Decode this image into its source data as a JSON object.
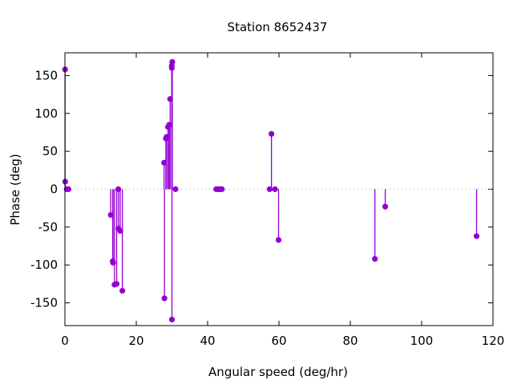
{
  "chart_data": {
    "type": "scatter",
    "style": "impulses-with-points",
    "title": "Station 8652437",
    "xlabel": "Angular speed (deg/hr)",
    "ylabel": "Phase (deg)",
    "xlim": [
      0,
      120
    ],
    "ylim": [
      -180,
      180
    ],
    "xticks": [
      0,
      20,
      40,
      60,
      80,
      100,
      120
    ],
    "yticks": [
      -150,
      -100,
      -50,
      0,
      50,
      100,
      150
    ],
    "zero_line": true,
    "color": "#9400d3",
    "points": [
      {
        "x": 0.04,
        "y": 158
      },
      {
        "x": 0.08,
        "y": 10
      },
      {
        "x": 0.5,
        "y": 0
      },
      {
        "x": 1.0,
        "y": 0
      },
      {
        "x": 12.85,
        "y": -34
      },
      {
        "x": 13.4,
        "y": -95
      },
      {
        "x": 13.5,
        "y": -97
      },
      {
        "x": 13.9,
        "y": -126
      },
      {
        "x": 14.5,
        "y": -125
      },
      {
        "x": 14.96,
        "y": 0
      },
      {
        "x": 15.0,
        "y": -52
      },
      {
        "x": 15.5,
        "y": -55
      },
      {
        "x": 16.1,
        "y": -134
      },
      {
        "x": 27.8,
        "y": 35
      },
      {
        "x": 27.9,
        "y": -144
      },
      {
        "x": 28.3,
        "y": 67
      },
      {
        "x": 28.5,
        "y": 69
      },
      {
        "x": 28.9,
        "y": 82
      },
      {
        "x": 29.2,
        "y": 85
      },
      {
        "x": 29.5,
        "y": 119
      },
      {
        "x": 29.96,
        "y": 160
      },
      {
        "x": 29.96,
        "y": 163
      },
      {
        "x": 30.0,
        "y": -172
      },
      {
        "x": 30.1,
        "y": 168
      },
      {
        "x": 31.0,
        "y": 0
      },
      {
        "x": 42.4,
        "y": 0
      },
      {
        "x": 43.0,
        "y": 0
      },
      {
        "x": 43.5,
        "y": 0
      },
      {
        "x": 44.0,
        "y": 0
      },
      {
        "x": 57.4,
        "y": 0
      },
      {
        "x": 57.9,
        "y": 73
      },
      {
        "x": 58.9,
        "y": 0
      },
      {
        "x": 59.9,
        "y": -67
      },
      {
        "x": 86.9,
        "y": -92
      },
      {
        "x": 89.8,
        "y": -23
      },
      {
        "x": 115.4,
        "y": -62
      }
    ]
  }
}
